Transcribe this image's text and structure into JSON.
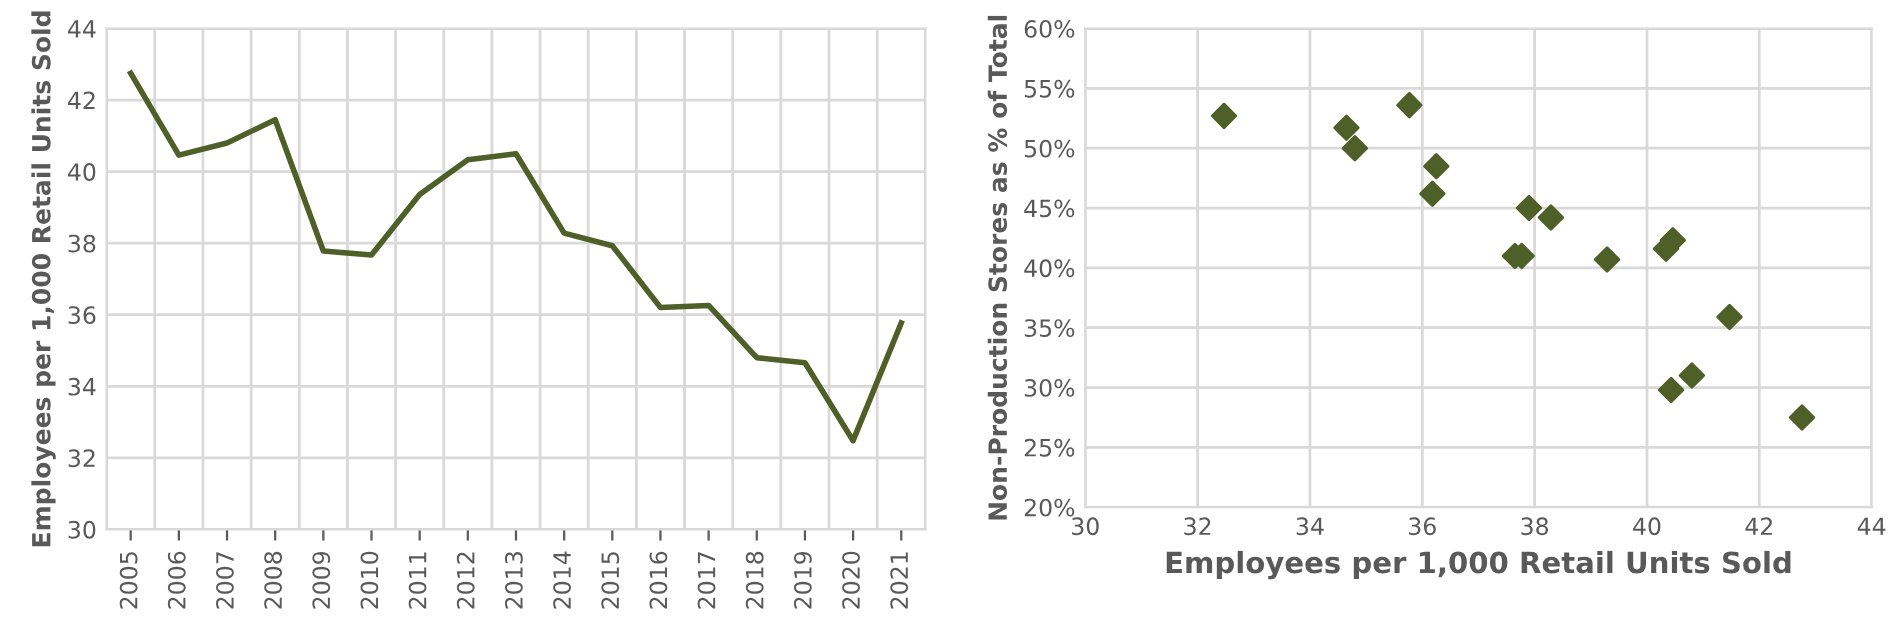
{
  "chart_data": [
    {
      "type": "line",
      "ylabel": "Employees per 1,000 Retail Units Sold",
      "categories": [
        "2005",
        "2006",
        "2007",
        "2008",
        "2009",
        "2010",
        "2011",
        "2012",
        "2013",
        "2014",
        "2015",
        "2016",
        "2017",
        "2018",
        "2019",
        "2020",
        "2021"
      ],
      "series": [
        {
          "color": "#4e5f28",
          "values": [
            42.75,
            40.46,
            40.8,
            41.45,
            37.78,
            37.67,
            39.36,
            40.33,
            40.5,
            38.28,
            37.93,
            36.2,
            36.26,
            34.8,
            34.66,
            32.48,
            35.77
          ]
        }
      ],
      "ylim": [
        30,
        44
      ],
      "yticks": [
        30,
        32,
        34,
        36,
        38,
        40,
        42,
        44
      ],
      "grid": true,
      "legend": false,
      "marker": "none",
      "line_style": "solid"
    },
    {
      "type": "scatter",
      "xlabel": "Employees per 1,000 Retail Units Sold",
      "ylabel": "Non-Production Stores as % of Total",
      "x": [
        32.47,
        34.65,
        34.8,
        35.77,
        36.25,
        36.18,
        37.9,
        38.29,
        37.65,
        37.77,
        39.29,
        40.34,
        40.46,
        41.47,
        40.43,
        40.8,
        42.76
      ],
      "series": [
        {
          "color": "#4e5f28",
          "values": [
            52.7,
            51.7,
            50.0,
            53.6,
            48.5,
            46.2,
            45.0,
            44.2,
            41.0,
            41.0,
            40.7,
            41.6,
            42.3,
            35.9,
            29.8,
            31.0,
            27.5
          ]
        }
      ],
      "xlim": [
        30,
        44
      ],
      "xticks": [
        30,
        32,
        34,
        36,
        38,
        40,
        42,
        44
      ],
      "ylim": [
        20,
        60
      ],
      "yticks": [
        {
          "value": 20,
          "label": "20%"
        },
        {
          "value": 25,
          "label": "25%"
        },
        {
          "value": 30,
          "label": "30%"
        },
        {
          "value": 35,
          "label": "35%"
        },
        {
          "value": 40,
          "label": "40%"
        },
        {
          "value": 45,
          "label": "45%"
        },
        {
          "value": 50,
          "label": "50%"
        },
        {
          "value": 55,
          "label": "55%"
        },
        {
          "value": 60,
          "label": "60%"
        }
      ],
      "grid": true,
      "legend": false,
      "marker": "diamond"
    }
  ]
}
